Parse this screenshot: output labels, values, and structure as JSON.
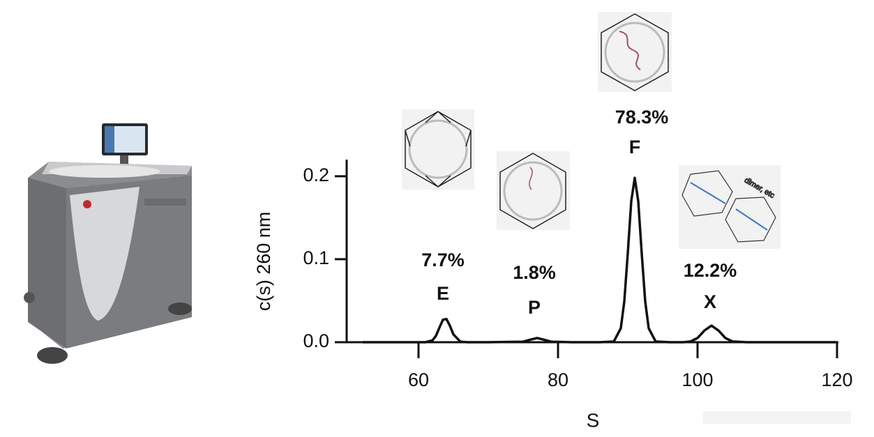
{
  "chart_data": {
    "type": "line",
    "xlabel": "S",
    "ylabel": "c(s) 260 nm",
    "xlim": [
      50,
      120
    ],
    "xticks": [
      60,
      80,
      100,
      120
    ],
    "ylim": [
      0,
      0.22
    ],
    "yticks": [
      {
        "value": 0,
        "label": "0.0"
      },
      0.1,
      0.2
    ],
    "color": "#111111",
    "x": [
      52,
      55,
      60,
      61,
      62,
      62.5,
      63,
      63.5,
      64,
      64.5,
      65,
      66,
      67,
      70,
      75,
      76,
      77,
      78,
      79,
      82,
      86,
      88,
      89,
      89.5,
      90,
      90.5,
      91,
      91.5,
      92,
      92.5,
      93,
      94,
      96,
      98,
      99,
      100,
      101,
      102,
      103,
      104,
      105,
      107,
      110,
      115,
      120
    ],
    "values": [
      0,
      0,
      0,
      0,
      0.0023,
      0.0077,
      0.0176,
      0.027,
      0.028,
      0.0198,
      0.0094,
      0.0007,
      0,
      0,
      0.0007,
      0.003,
      0.005,
      0.003,
      0.0007,
      0,
      0,
      0.0008,
      0.0168,
      0.049,
      0.107,
      0.17,
      0.198,
      0.17,
      0.107,
      0.049,
      0.0168,
      0.0008,
      0,
      0,
      0.0009,
      0.005,
      0.0141,
      0.02,
      0.0141,
      0.005,
      0.0009,
      0,
      0,
      0,
      0
    ],
    "peaks": {
      "labels": [
        "E",
        "P",
        "F",
        "X"
      ],
      "values": [
        7.7,
        1.8,
        78.3,
        12.2
      ],
      "value_labels": [
        "7.7%",
        "1.8%",
        "78.3%",
        "12.2%"
      ]
    },
    "dimer_note": "dimer, etc"
  }
}
